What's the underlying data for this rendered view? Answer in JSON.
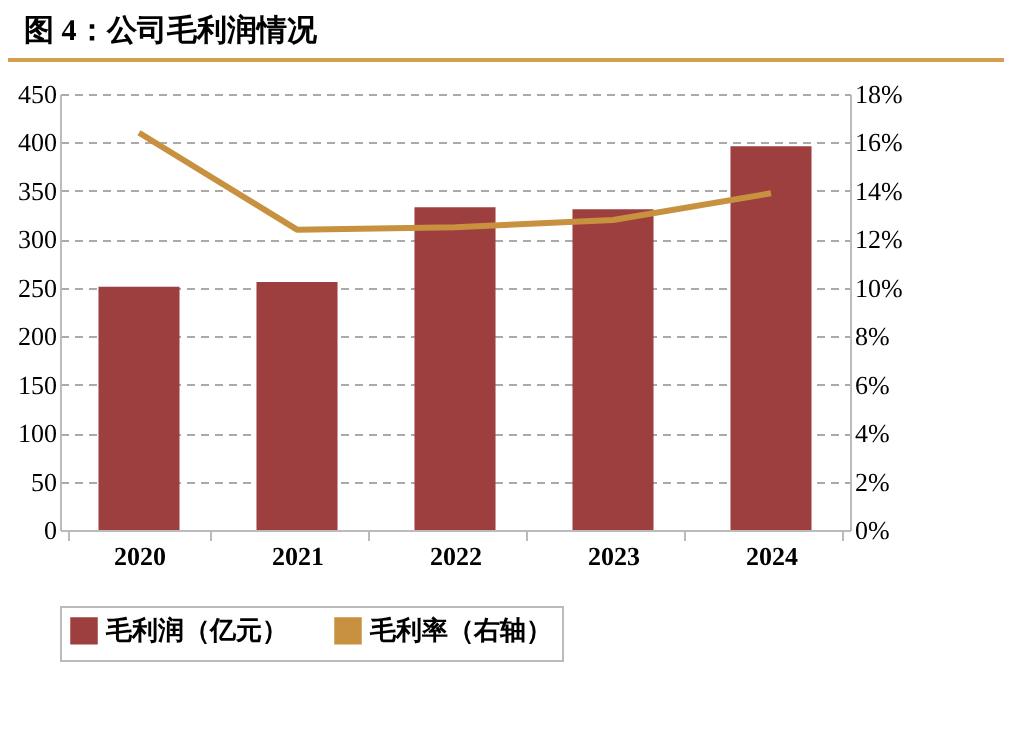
{
  "chart_data": {
    "type": "bar",
    "title": "图 4：公司毛利润情况",
    "categories": [
      "2020",
      "2021",
      "2022",
      "2023",
      "2024"
    ],
    "series": [
      {
        "name": "毛利润（亿元）",
        "color": "#9e3f3f",
        "values": [
          251,
          256,
          333,
          331,
          396
        ]
      },
      {
        "name": "毛利率（右轴）",
        "type": "line",
        "axis": "y2",
        "color": "#c8913f",
        "values": [
          16.4,
          12.4,
          12.5,
          12.8,
          13.9
        ]
      }
    ],
    "ylim": [
      0,
      450
    ],
    "yticks": [
      0,
      50,
      100,
      150,
      200,
      250,
      300,
      350,
      400,
      450
    ],
    "y2lim": [
      0,
      18
    ],
    "y2ticks": [
      {
        "value": 0,
        "label": "0%"
      },
      {
        "value": 2,
        "label": "2%"
      },
      {
        "value": 4,
        "label": "4%"
      },
      {
        "value": 6,
        "label": "6%"
      },
      {
        "value": 8,
        "label": "8%"
      },
      {
        "value": 10,
        "label": "10%"
      },
      {
        "value": 12,
        "label": "12%"
      },
      {
        "value": 14,
        "label": "14%"
      },
      {
        "value": 16,
        "label": "16%"
      },
      {
        "value": 18,
        "label": "18%"
      }
    ],
    "grid": "y",
    "legend": "bottom",
    "line_style": "solid",
    "marker": "none"
  }
}
